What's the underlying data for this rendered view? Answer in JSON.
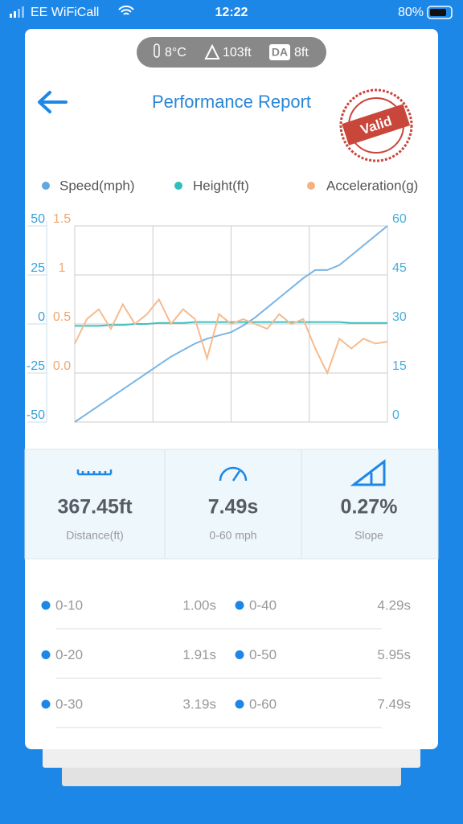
{
  "status_bar": {
    "carrier": "EE WiFiCall",
    "time": "12:22",
    "battery": "80%"
  },
  "conditions": {
    "temperature": "8°C",
    "altitude": "103ft",
    "density_altitude_label": "DA",
    "density_altitude": "8ft"
  },
  "header": {
    "title": "Performance Report",
    "stamp": "Valid"
  },
  "chart_data": {
    "type": "line",
    "series": [
      {
        "name": "Speed(mph)",
        "color": "#7cb5e2",
        "axis": "y2",
        "values": [
          0,
          2.5,
          5,
          7.5,
          10,
          12.5,
          15,
          17.5,
          20,
          22,
          24,
          25.5,
          26.5,
          27.5,
          29.5,
          32,
          35,
          38,
          41,
          44,
          46.5,
          46.5,
          48,
          51,
          54,
          57,
          60
        ]
      },
      {
        "name": "Height(ft)",
        "color": "#3cc0c0",
        "axis": "y",
        "values": [
          -1,
          -1,
          -1,
          -0.5,
          -0.5,
          0,
          0,
          0.5,
          0.5,
          0.5,
          1,
          1,
          1,
          1,
          1,
          1,
          1,
          1,
          1,
          1,
          1,
          1,
          1,
          0.5,
          0.5,
          0.5,
          0.5
        ]
      },
      {
        "name": "Acceleration(g)",
        "color": "#f5bb8f",
        "axis": "y3",
        "values": [
          0.3,
          0.55,
          0.65,
          0.45,
          0.7,
          0.5,
          0.6,
          0.75,
          0.5,
          0.65,
          0.55,
          0.15,
          0.6,
          0.5,
          0.55,
          0.5,
          0.45,
          0.6,
          0.5,
          0.55,
          0.25,
          0.0,
          0.35,
          0.25,
          0.35,
          0.3,
          0.32
        ]
      }
    ],
    "ylim": [
      -50,
      50
    ],
    "yticks": [
      50,
      25,
      0,
      -25,
      -50
    ],
    "y2lim": [
      0,
      60
    ],
    "y2ticks": [
      60,
      45,
      30,
      15,
      0
    ],
    "y3lim": [
      -0.5,
      1.5
    ],
    "y3ticks": [
      1.5,
      1,
      0.5,
      {
        "value": 0,
        "label": "0.0"
      }
    ],
    "grid": true
  },
  "stats": [
    {
      "value": "367.45ft",
      "label": "Distance(ft)"
    },
    {
      "value": "7.49s",
      "label": "0-60 mph"
    },
    {
      "value": "0.27%",
      "label": "Slope"
    }
  ],
  "splits": [
    {
      "range": "0-10",
      "time": "1.00s"
    },
    {
      "range": "0-40",
      "time": "4.29s"
    },
    {
      "range": "0-20",
      "time": "1.91s"
    },
    {
      "range": "0-50",
      "time": "5.95s"
    },
    {
      "range": "0-30",
      "time": "3.19s"
    },
    {
      "range": "0-60",
      "time": "7.49s"
    }
  ]
}
